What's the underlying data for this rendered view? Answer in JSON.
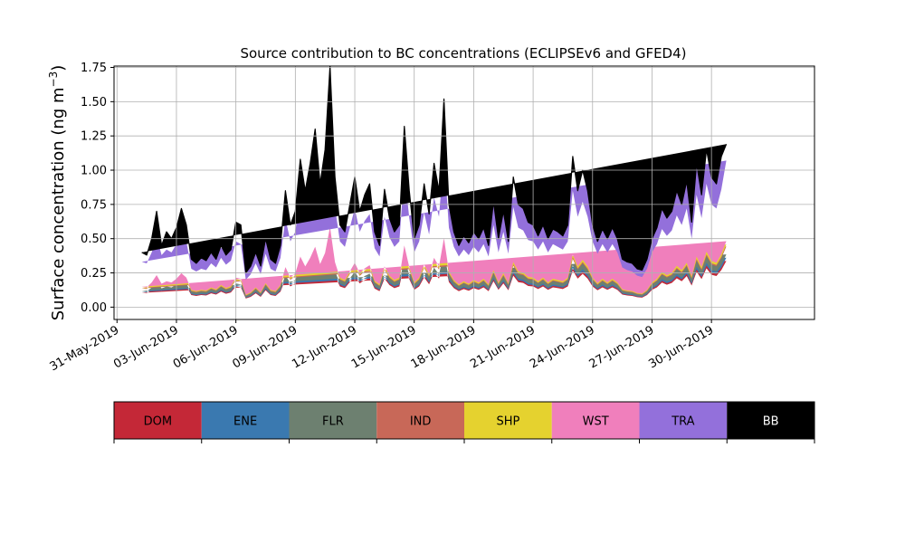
{
  "chart_data": {
    "type": "area",
    "stacked": true,
    "title": "Source contribution to BC concentrations (ECLIPSEv6 and GFED4)",
    "ylabel_main": "Surface concentration (ng m",
    "ylabel_sup": "−3",
    "ylabel_close": ")",
    "xlabel": "",
    "grid": true,
    "ylim": [
      -0.09,
      1.76
    ],
    "xlim_days": [
      -0.15,
      35.2
    ],
    "yticks": [
      0.0,
      0.25,
      0.5,
      0.75,
      1.0,
      1.25,
      1.5,
      1.75
    ],
    "ytick_labels": [
      "0.00",
      "0.25",
      "0.50",
      "0.75",
      "1.00",
      "1.25",
      "1.50",
      "1.75"
    ],
    "xticks_days": [
      0,
      3,
      6,
      9,
      12,
      15,
      18,
      21,
      24,
      27,
      30
    ],
    "xtick_labels": [
      "31-May-2019",
      "03-Jun-2019",
      "06-Jun-2019",
      "09-Jun-2019",
      "12-Jun-2019",
      "15-Jun-2019",
      "18-Jun-2019",
      "21-Jun-2019",
      "24-Jun-2019",
      "27-Jun-2019",
      "30-Jun-2019"
    ],
    "series_order": [
      "DOM",
      "ENE",
      "FLR",
      "IND",
      "SHP",
      "WST",
      "TRA",
      "BB"
    ],
    "colors": {
      "DOM": "#c42837",
      "ENE": "#3a79b0",
      "FLR": "#6d8070",
      "IND": "#c86858",
      "SHP": "#e5d22f",
      "WST": "#f07fbc",
      "TRA": "#9370db",
      "BB": "#000000"
    },
    "text_colors": {
      "DOM": "#000000",
      "ENE": "#000000",
      "FLR": "#000000",
      "IND": "#000000",
      "SHP": "#000000",
      "WST": "#000000",
      "TRA": "#000000",
      "BB": "#ffffff"
    },
    "time_days": [
      1.25,
      1.5,
      1.75,
      2.0,
      2.25,
      2.5,
      2.75,
      3.0,
      3.25,
      3.5,
      3.75,
      4.0,
      4.25,
      4.5,
      4.75,
      5.0,
      5.25,
      5.5,
      5.75,
      6.0,
      6.25,
      6.5,
      6.75,
      7.0,
      7.25,
      7.5,
      7.75,
      8.0,
      8.25,
      8.5,
      8.75,
      9.0,
      9.25,
      9.5,
      9.75,
      10.0,
      10.25,
      10.5,
      10.75,
      11.0,
      11.25,
      11.5,
      11.75,
      12.0,
      12.25,
      12.5,
      12.75,
      13.0,
      13.25,
      13.5,
      13.75,
      14.0,
      14.25,
      14.5,
      14.75,
      15.0,
      15.25,
      15.5,
      15.75,
      16.0,
      16.25,
      16.5,
      16.75,
      17.0,
      17.25,
      17.5,
      17.75,
      18.0,
      18.25,
      18.5,
      18.75,
      19.0,
      19.25,
      19.5,
      19.75,
      20.0,
      20.25,
      20.5,
      20.75,
      21.0,
      21.25,
      21.5,
      21.75,
      22.0,
      22.25,
      22.5,
      22.75,
      23.0,
      23.25,
      23.5,
      23.75,
      24.0,
      24.25,
      24.5,
      24.75,
      25.0,
      25.25,
      25.5,
      25.75,
      26.0,
      26.25,
      26.5,
      26.75,
      27.0,
      27.25,
      27.5,
      27.75,
      28.0,
      28.25,
      28.5,
      28.75,
      29.0,
      29.25,
      29.5,
      29.75,
      30.0,
      30.25,
      30.5,
      30.75,
      31.0,
      31.25
    ],
    "total_BC": [
      0.4,
      0.38,
      0.5,
      0.7,
      0.45,
      0.55,
      0.5,
      0.58,
      0.72,
      0.6,
      0.35,
      0.32,
      0.36,
      0.34,
      0.4,
      0.35,
      0.45,
      0.38,
      0.42,
      0.62,
      0.6,
      0.25,
      0.3,
      0.4,
      0.3,
      0.5,
      0.35,
      0.32,
      0.45,
      0.85,
      0.6,
      0.7,
      1.08,
      0.85,
      1.05,
      1.3,
      0.9,
      1.15,
      1.76,
      0.95,
      0.6,
      0.55,
      0.75,
      0.95,
      0.7,
      0.82,
      0.9,
      0.55,
      0.45,
      0.86,
      0.65,
      0.55,
      0.6,
      1.32,
      0.85,
      0.5,
      0.6,
      0.9,
      0.68,
      1.05,
      0.85,
      1.52,
      0.75,
      0.55,
      0.45,
      0.52,
      0.47,
      0.55,
      0.5,
      0.58,
      0.45,
      0.77,
      0.5,
      0.7,
      0.48,
      0.95,
      0.75,
      0.72,
      0.62,
      0.6,
      0.52,
      0.6,
      0.5,
      0.57,
      0.55,
      0.52,
      0.6,
      1.1,
      0.85,
      1.0,
      0.85,
      0.6,
      0.48,
      0.57,
      0.5,
      0.58,
      0.5,
      0.35,
      0.33,
      0.32,
      0.28,
      0.27,
      0.35,
      0.5,
      0.58,
      0.72,
      0.65,
      0.7,
      0.85,
      0.75,
      0.92,
      0.62,
      1.05,
      0.82,
      1.15,
      0.95,
      0.9,
      1.1,
      1.19
    ],
    "total_TRA_top": [
      0.33,
      0.32,
      0.4,
      0.52,
      0.38,
      0.42,
      0.4,
      0.46,
      0.55,
      0.48,
      0.28,
      0.26,
      0.28,
      0.27,
      0.32,
      0.29,
      0.36,
      0.31,
      0.34,
      0.48,
      0.46,
      0.2,
      0.24,
      0.32,
      0.24,
      0.39,
      0.28,
      0.26,
      0.36,
      0.65,
      0.48,
      0.55,
      0.82,
      0.66,
      0.8,
      0.98,
      0.7,
      0.88,
      1.3,
      0.73,
      0.48,
      0.44,
      0.58,
      0.72,
      0.55,
      0.63,
      0.68,
      0.43,
      0.37,
      0.66,
      0.51,
      0.44,
      0.48,
      1.0,
      0.65,
      0.4,
      0.48,
      0.69,
      0.53,
      0.8,
      0.66,
      1.12,
      0.58,
      0.44,
      0.37,
      0.42,
      0.38,
      0.44,
      0.4,
      0.46,
      0.37,
      0.6,
      0.4,
      0.55,
      0.39,
      0.73,
      0.58,
      0.56,
      0.49,
      0.48,
      0.42,
      0.48,
      0.4,
      0.46,
      0.44,
      0.42,
      0.48,
      0.85,
      0.66,
      0.77,
      0.66,
      0.48,
      0.39,
      0.46,
      0.4,
      0.46,
      0.4,
      0.29,
      0.27,
      0.26,
      0.23,
      0.22,
      0.28,
      0.4,
      0.46,
      0.57,
      0.52,
      0.56,
      0.67,
      0.6,
      0.72,
      0.5,
      0.82,
      0.65,
      0.9,
      0.75,
      0.72,
      0.86,
      1.07
    ],
    "fraction_of_nonTRA": {
      "DOM": 0.7,
      "ENE": 0.05,
      "FLR": 0.05,
      "IND": 0.12,
      "SHP": 0.03,
      "WST": 0.05
    },
    "nonTRA_share_of_TRA_top": 0.45,
    "legend": {
      "placement": "bottom",
      "labels": [
        "DOM",
        "ENE",
        "FLR",
        "IND",
        "SHP",
        "WST",
        "TRA",
        "BB"
      ]
    }
  }
}
